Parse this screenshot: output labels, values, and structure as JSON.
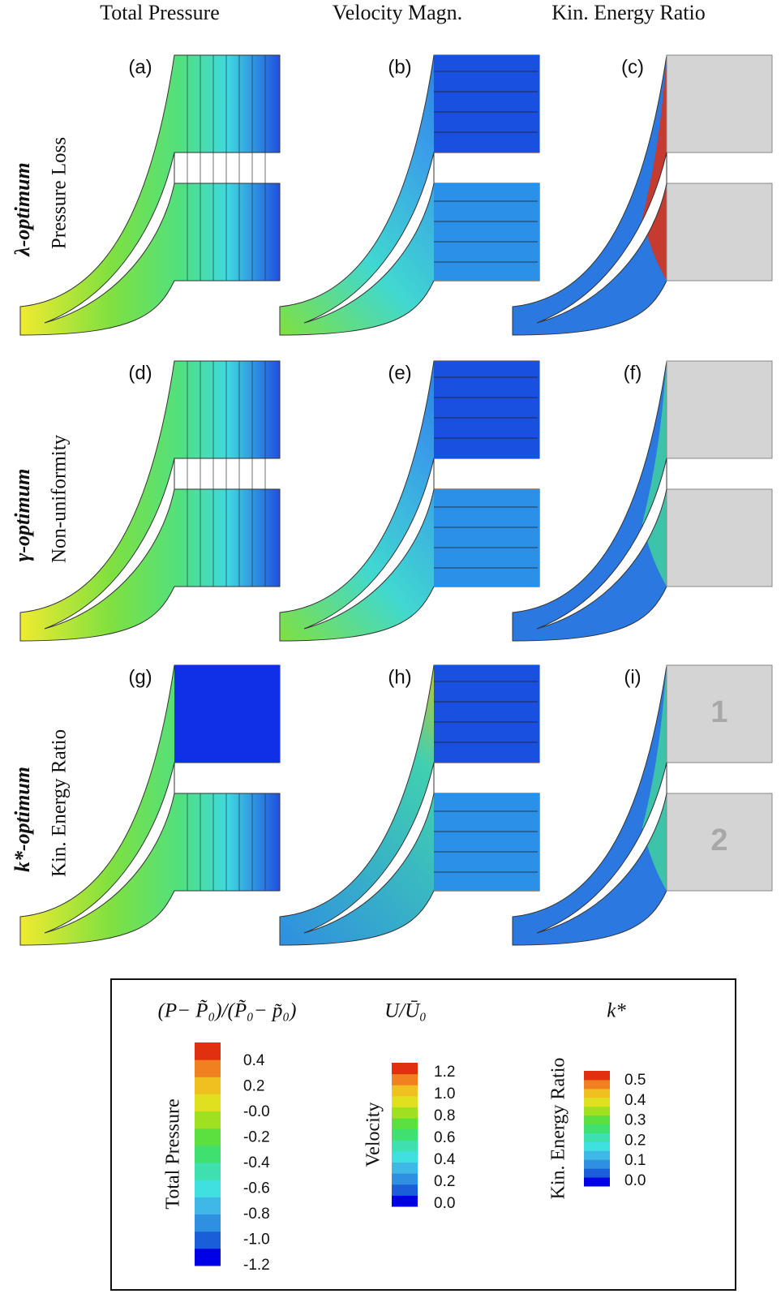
{
  "columns": [
    "Total Pressure",
    "Velocity Magn.",
    "Kin. Energy Ratio"
  ],
  "rows": [
    {
      "name": "λ-optimum",
      "objective": "Pressure Loss"
    },
    {
      "name": "γ-optimum",
      "objective": "Non-uniformity"
    },
    {
      "name": "k*-optimum",
      "objective": "Kin. Energy Ratio"
    }
  ],
  "panels": [
    "(a)",
    "(b)",
    "(c)",
    "(d)",
    "(e)",
    "(f)",
    "(g)",
    "(h)",
    "(i)"
  ],
  "outlet_labels": [
    "1",
    "2"
  ],
  "legend": {
    "bars": [
      {
        "title": "(P− P̃₀)/(P̃₀− p̃₀)",
        "label": "Total Pressure",
        "ticks": [
          "0.4",
          "0.2",
          "-0.0",
          "-0.2",
          "-0.4",
          "-0.6",
          "-0.8",
          "-1.0",
          "-1.2"
        ]
      },
      {
        "title": "U/Ū₀",
        "label": "Velocity",
        "ticks": [
          "1.2",
          "1.0",
          "0.8",
          "0.6",
          "0.4",
          "0.2",
          "0.0"
        ]
      },
      {
        "title": "k*",
        "label": "Kin. Energy Ratio",
        "ticks": [
          "0.5",
          "0.4",
          "0.3",
          "0.2",
          "0.1",
          "0.0"
        ]
      }
    ]
  }
}
